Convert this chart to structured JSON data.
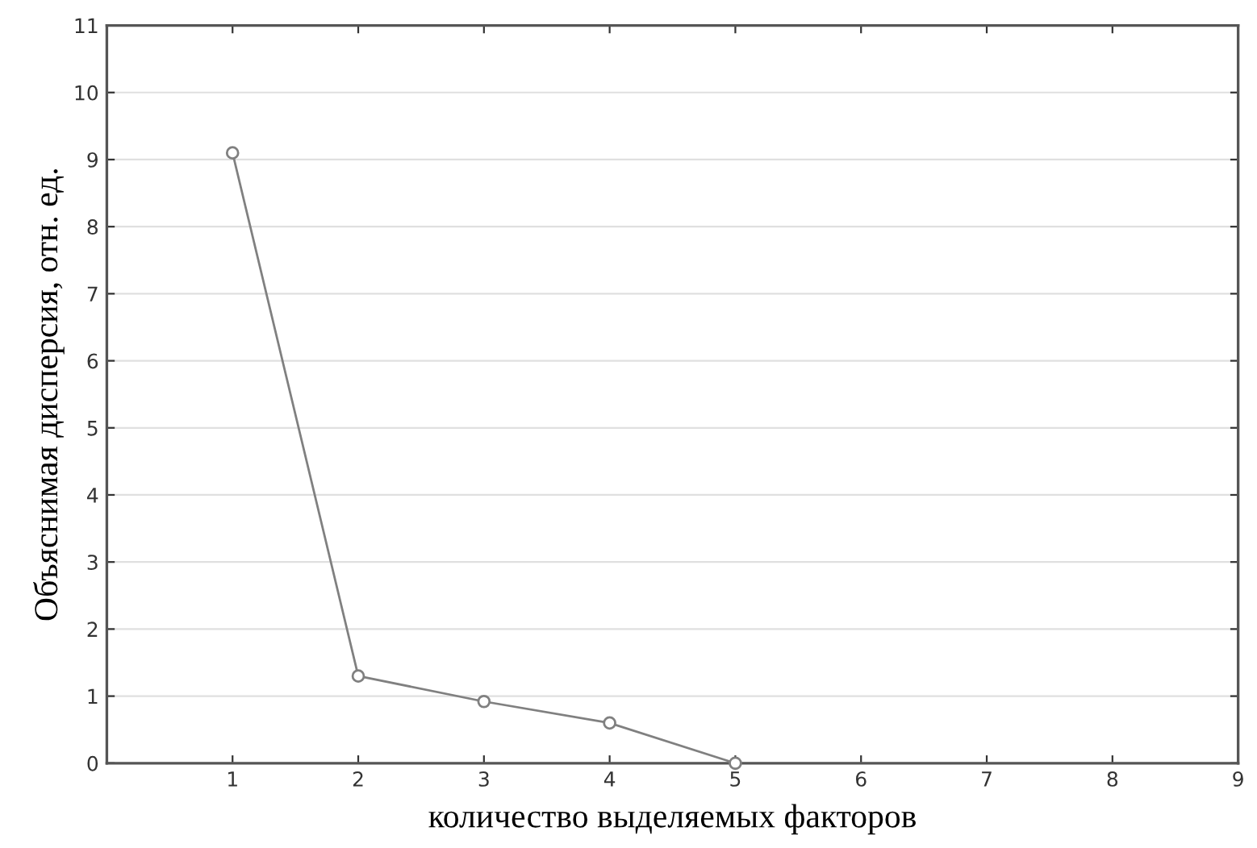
{
  "chart_data": {
    "type": "line",
    "xlabel": "количество выделяемых факторов",
    "ylabel": "Объяснимая дисперсия, отн. ед.",
    "x": [
      1,
      2,
      3,
      4,
      5
    ],
    "series": [
      {
        "color": "#808080",
        "values": [
          9.1,
          1.3,
          0.92,
          0.6,
          0
        ]
      }
    ],
    "xlim": [
      0,
      9
    ],
    "xticks": [
      1,
      2,
      3,
      4,
      5,
      6,
      7,
      8,
      9
    ],
    "ylim": [
      0,
      11
    ],
    "yticks": [
      0,
      1,
      2,
      3,
      4,
      5,
      6,
      7,
      8,
      9,
      10,
      11
    ],
    "grid": "y",
    "marker": "circle",
    "line_style": "solid"
  }
}
